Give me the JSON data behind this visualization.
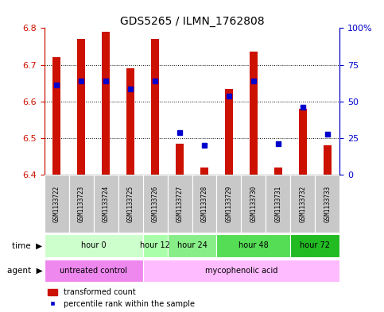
{
  "title": "GDS5265 / ILMN_1762808",
  "samples": [
    "GSM1133722",
    "GSM1133723",
    "GSM1133724",
    "GSM1133725",
    "GSM1133726",
    "GSM1133727",
    "GSM1133728",
    "GSM1133729",
    "GSM1133730",
    "GSM1133731",
    "GSM1133732",
    "GSM1133733"
  ],
  "bar_tops": [
    6.72,
    6.77,
    6.79,
    6.69,
    6.77,
    6.485,
    6.42,
    6.635,
    6.735,
    6.42,
    6.58,
    6.48
  ],
  "bar_bottoms": [
    6.4,
    6.4,
    6.4,
    6.4,
    6.4,
    6.4,
    6.4,
    6.4,
    6.4,
    6.4,
    6.4,
    6.4
  ],
  "percentile_values": [
    6.645,
    6.655,
    6.655,
    6.635,
    6.655,
    6.515,
    6.48,
    6.615,
    6.655,
    6.485,
    6.585,
    6.51
  ],
  "ylim": [
    6.4,
    6.8
  ],
  "yticks": [
    6.4,
    6.5,
    6.6,
    6.7,
    6.8
  ],
  "right_yticks": [
    0,
    25,
    50,
    75,
    100
  ],
  "bar_color": "#CC1100",
  "blue_color": "#0000CC",
  "gray_color": "#C8C8C8",
  "time_groups": [
    {
      "label": "hour 0",
      "start": 0,
      "end": 4,
      "color": "#CCFFCC"
    },
    {
      "label": "hour 12",
      "start": 4,
      "end": 5,
      "color": "#AAFFAA"
    },
    {
      "label": "hour 24",
      "start": 5,
      "end": 7,
      "color": "#88EE88"
    },
    {
      "label": "hour 48",
      "start": 7,
      "end": 10,
      "color": "#55DD55"
    },
    {
      "label": "hour 72",
      "start": 10,
      "end": 12,
      "color": "#22BB22"
    }
  ],
  "agent_groups": [
    {
      "label": "untreated control",
      "start": 0,
      "end": 4,
      "color": "#EE88EE"
    },
    {
      "label": "mycophenolic acid",
      "start": 4,
      "end": 12,
      "color": "#FFBBFF"
    }
  ],
  "title_fontsize": 10,
  "tick_fontsize": 8,
  "sample_fontsize": 5.5,
  "row_fontsize": 7,
  "legend_fontsize": 7
}
